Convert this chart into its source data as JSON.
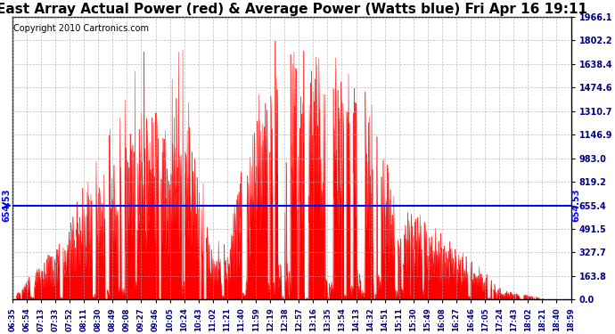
{
  "title": "East Array Actual Power (red) & Average Power (Watts blue) Fri Apr 16 19:11",
  "copyright": "Copyright 2010 Cartronics.com",
  "ymin": 0.0,
  "ymax": 1966.1,
  "avg_power": 654.53,
  "yticks": [
    0.0,
    163.8,
    327.7,
    491.5,
    655.4,
    819.2,
    983.0,
    1146.9,
    1310.7,
    1474.6,
    1638.4,
    1802.2,
    1966.1
  ],
  "xtick_labels": [
    "06:35",
    "06:54",
    "07:13",
    "07:33",
    "07:52",
    "08:11",
    "08:30",
    "08:49",
    "09:08",
    "09:27",
    "09:46",
    "10:05",
    "10:24",
    "10:43",
    "11:02",
    "11:21",
    "11:40",
    "11:59",
    "12:19",
    "12:38",
    "12:57",
    "13:16",
    "13:35",
    "13:54",
    "14:13",
    "14:32",
    "14:51",
    "15:11",
    "15:30",
    "15:49",
    "16:08",
    "16:27",
    "16:46",
    "17:05",
    "17:24",
    "17:43",
    "18:02",
    "18:21",
    "18:40",
    "18:59"
  ],
  "title_fontsize": 11,
  "copyright_fontsize": 7,
  "avg_line_color": "#0000ff",
  "fill_color": "#ff0000",
  "bg_color": "#ffffff",
  "grid_color": "#aaaaaa"
}
